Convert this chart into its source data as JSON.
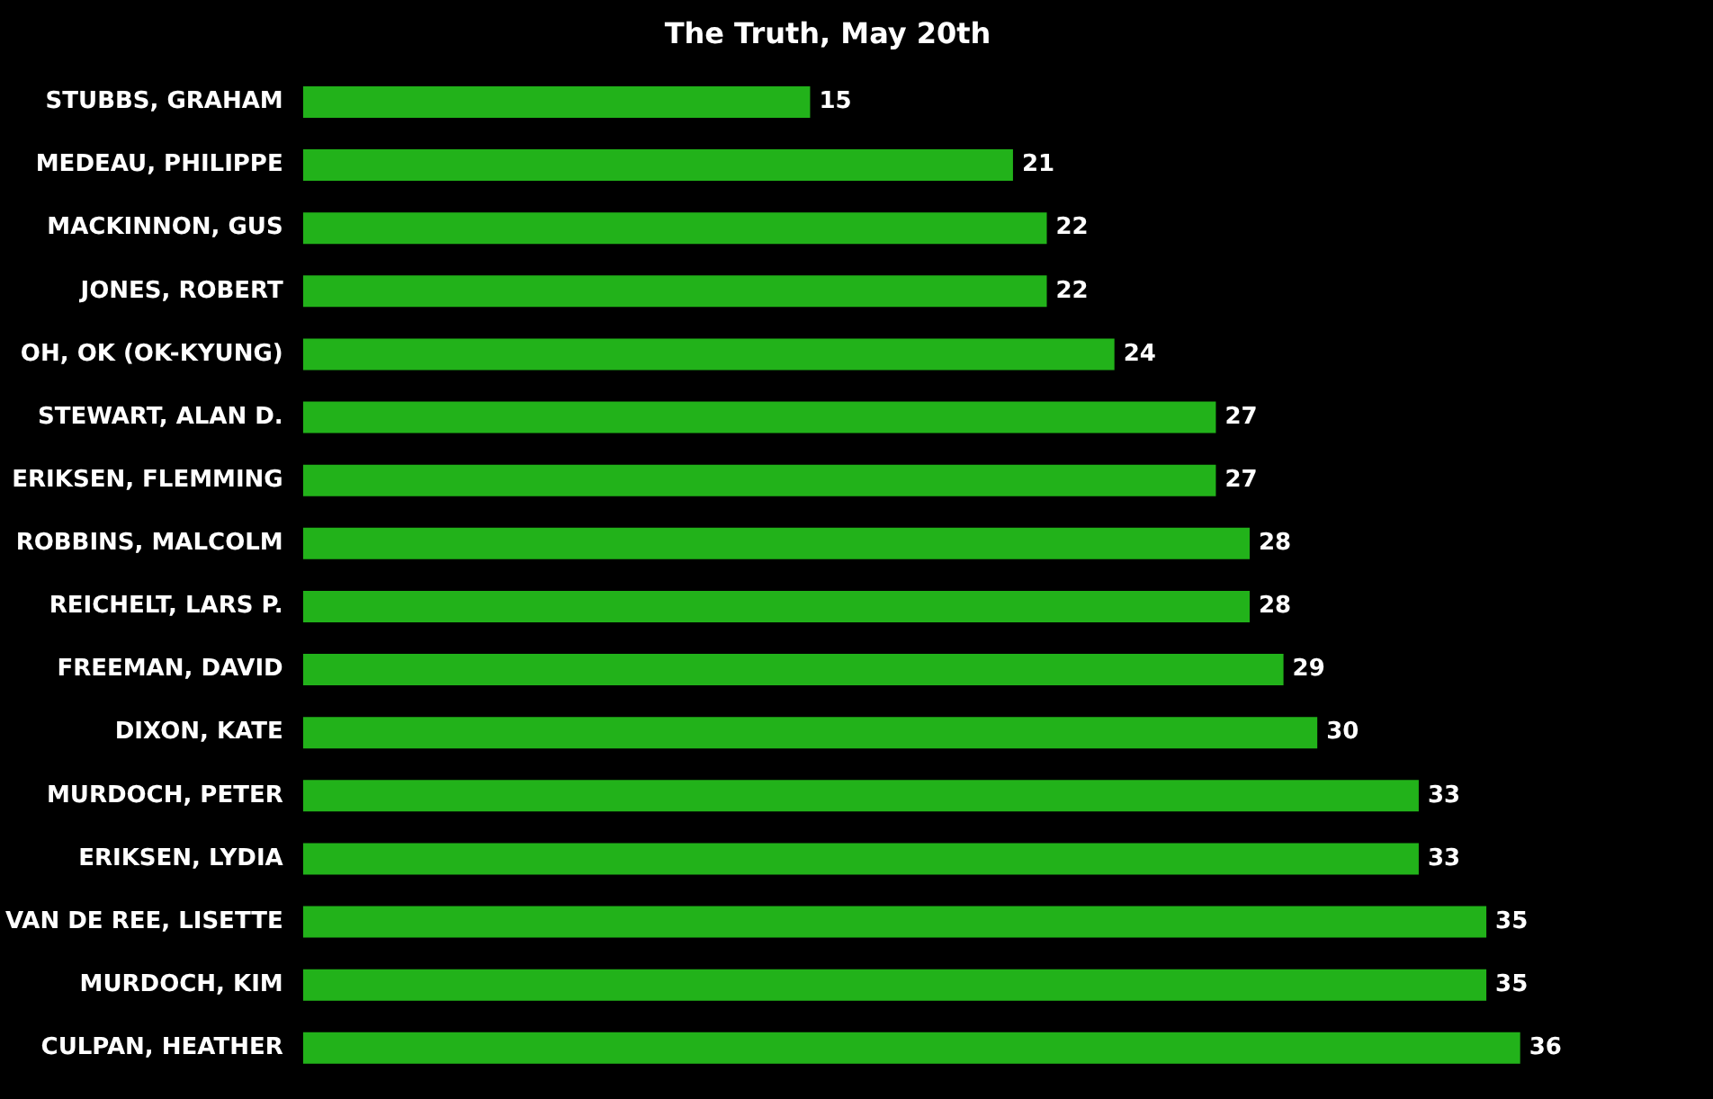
{
  "chart_data": {
    "type": "bar",
    "orientation": "horizontal",
    "title": "The Truth, May 20th",
    "categories": [
      "STUBBS, GRAHAM",
      "MEDEAU, PHILIPPE",
      "MACKINNON, GUS",
      "JONES, ROBERT",
      "OH, OK (OK-KYUNG)",
      "STEWART, ALAN D.",
      "ERIKSEN, FLEMMING",
      "ROBBINS, MALCOLM",
      "REICHELT, LARS P.",
      "FREEMAN, DAVID",
      "DIXON, KATE",
      "MURDOCH, PETER",
      "ERIKSEN, LYDIA",
      "VAN DE REE, LISETTE",
      "MURDOCH, KIM",
      "CULPAN, HEATHER"
    ],
    "values": [
      15,
      21,
      22,
      22,
      24,
      27,
      27,
      28,
      28,
      29,
      30,
      33,
      33,
      35,
      35,
      36
    ],
    "color": "#22b21a",
    "data_labels": true
  }
}
